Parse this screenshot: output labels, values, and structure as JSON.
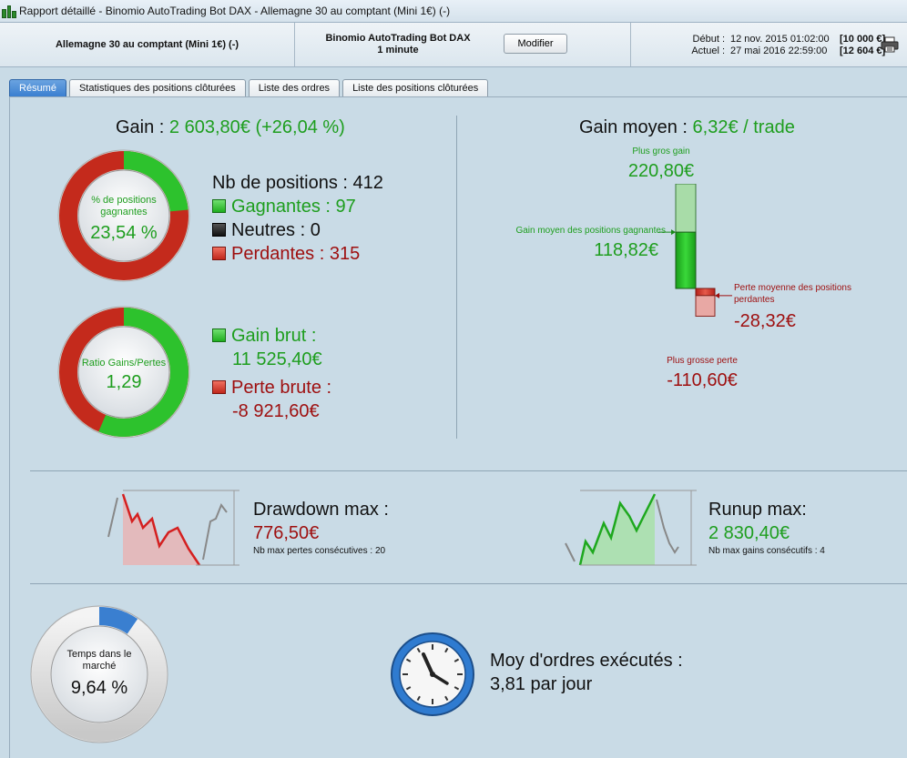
{
  "window": {
    "title": "Rapport détaillé - Binomio AutoTrading Bot DAX - Allemagne 30 au comptant (Mini 1€) (-)"
  },
  "header": {
    "instrument": "Allemagne 30 au comptant (Mini 1€) (-)",
    "strategy_name": "Binomio AutoTrading Bot DAX",
    "timeframe": "1 minute",
    "modify_label": "Modifier",
    "start_label": "Début :",
    "start_date": "12 nov. 2015 01:02:00",
    "start_balance": "[10 000 €]",
    "current_label": "Actuel :",
    "current_date": "27 mai 2016 22:59:00",
    "current_balance": "[12 604 €]"
  },
  "tabs": [
    {
      "label": "Résumé",
      "active": true
    },
    {
      "label": "Statistiques des positions clôturées"
    },
    {
      "label": "Liste des ordres"
    },
    {
      "label": "Liste des positions clôturées"
    }
  ],
  "gain": {
    "label": "Gain :",
    "value": "2 603,80€ (+26,04 %)"
  },
  "positions": {
    "total_label": "Nb de positions : 412",
    "winning_label": "Gagnantes : 97",
    "neutral_label": "Neutres : 0",
    "losing_label": "Perdantes : 315",
    "win_donut_label": "% de positions gagnantes",
    "win_pct": "23,54 %",
    "win_fraction": 0.2354
  },
  "ratio": {
    "donut_label": "Ratio Gains/Pertes",
    "value": "1,29",
    "gain_fraction": 0.5637,
    "gross_gain_label": "Gain brut :",
    "gross_gain": "11 525,40€",
    "gross_loss_label": "Perte brute :",
    "gross_loss": "-8 921,60€"
  },
  "avg": {
    "label": "Gain moyen :",
    "value": "6,32€ / trade",
    "biggest_gain_label": "Plus gros gain",
    "biggest_gain": "220,80€",
    "avg_win_label": "Gain moyen des positions gagnantes",
    "avg_win": "118,82€",
    "avg_loss_label": "Perte moyenne des positions perdantes",
    "avg_loss": "-28,32€",
    "biggest_loss_label": "Plus grosse perte",
    "biggest_loss": "-110,60€",
    "biggest_gain_num": 220.8,
    "avg_win_num": 118.82,
    "avg_loss_num": 28.32,
    "biggest_loss_num": 110.6
  },
  "drawdown": {
    "title": "Drawdown max :",
    "value": "776,50€",
    "sub": "Nb max pertes consécutives : 20"
  },
  "runup": {
    "title": "Runup max:",
    "value": "2 830,40€",
    "sub": "Nb max gains consécutifs : 4"
  },
  "market_time": {
    "label": "Temps dans le marché",
    "value": "9,64 %",
    "fraction": 0.0964
  },
  "orders": {
    "title": "Moy d'ordres exécutés :",
    "value": "3,81 par jour"
  },
  "colors": {
    "green": "#1e9e1e",
    "red": "#9e0f0f",
    "blue": "#3a7fd0"
  }
}
